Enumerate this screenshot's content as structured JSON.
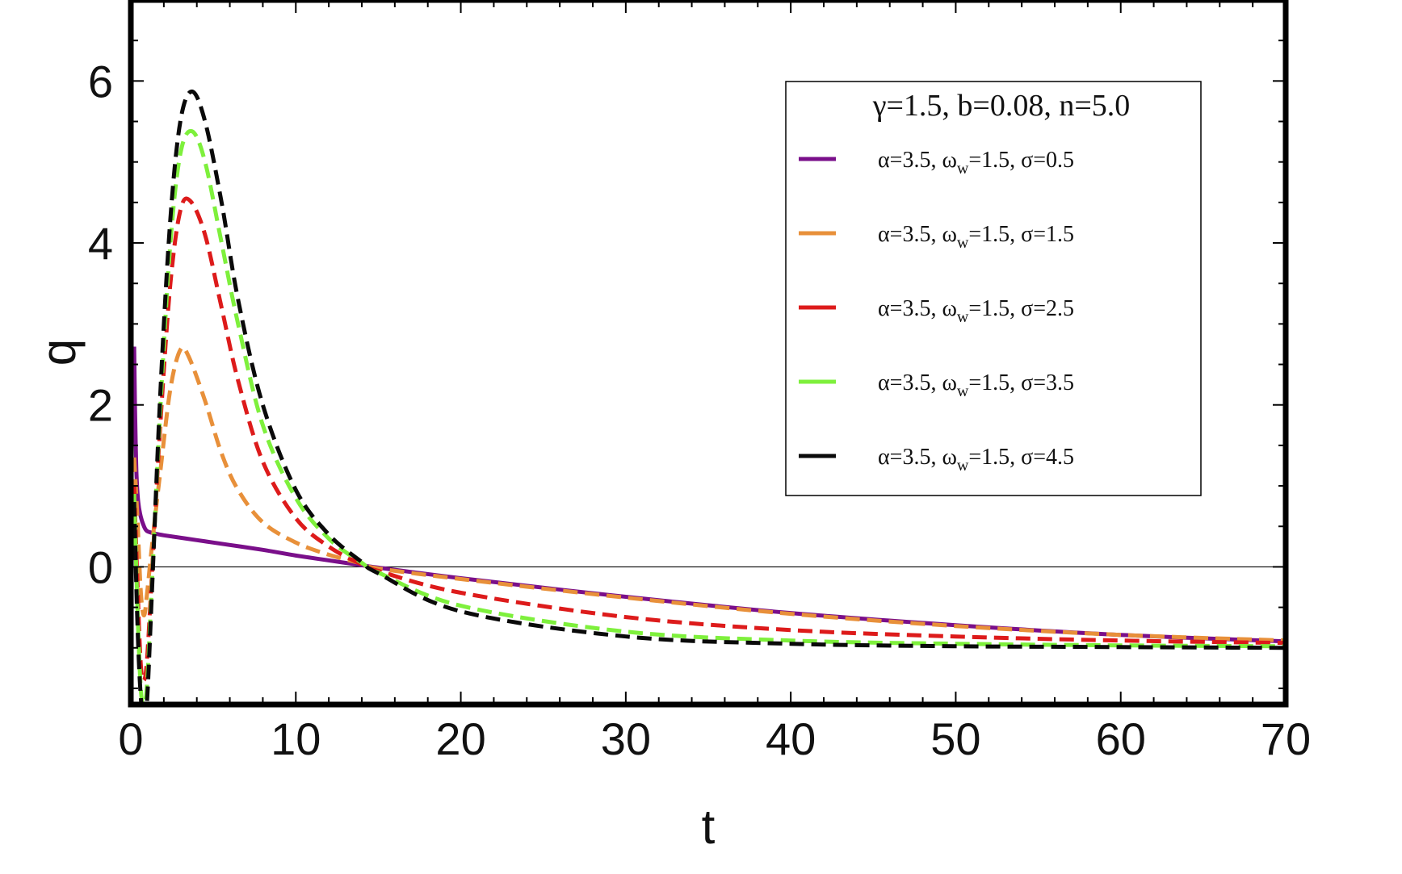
{
  "chart_data": {
    "type": "line",
    "xlabel": "t",
    "ylabel": "q",
    "xlim": [
      0,
      70
    ],
    "ylim": [
      -1.7,
      7.0
    ],
    "x_ticks": [
      0,
      10,
      20,
      30,
      40,
      50,
      60,
      70
    ],
    "y_ticks": [
      0,
      2,
      4,
      6
    ],
    "legend": {
      "title": "γ=1.5, b=0.08, n=5.0",
      "placement": "top-right"
    },
    "series": [
      {
        "name": "α=3.5, ωw=1.5, σ=0.5",
        "label_parts": {
          "a": "α=3.5, ω",
          "sub": "w",
          "b": "=1.5, σ=0.5"
        },
        "color": "#7a0f8a",
        "dash": "solid",
        "points": [
          [
            0.2,
            2.72
          ],
          [
            0.25,
            2.0
          ],
          [
            0.3,
            1.5
          ],
          [
            0.35,
            1.1
          ],
          [
            0.45,
            0.8
          ],
          [
            0.6,
            0.62
          ],
          [
            0.8,
            0.5
          ],
          [
            1.0,
            0.44
          ],
          [
            1.5,
            0.41
          ],
          [
            2,
            0.39
          ],
          [
            4,
            0.33
          ],
          [
            6,
            0.27
          ],
          [
            8,
            0.21
          ],
          [
            10,
            0.14
          ],
          [
            12,
            0.08
          ],
          [
            14,
            0.02
          ],
          [
            15,
            -0.01
          ],
          [
            20,
            -0.14
          ],
          [
            30,
            -0.37
          ],
          [
            40,
            -0.57
          ],
          [
            50,
            -0.72
          ],
          [
            60,
            -0.84
          ],
          [
            70,
            -0.92
          ]
        ]
      },
      {
        "name": "α=3.5, ωw=1.5, σ=1.5",
        "label_parts": {
          "a": "α=3.5, ω",
          "sub": "w",
          "b": "=1.5, σ=1.5"
        },
        "color": "#e8903a",
        "dash": "dashed",
        "points": [
          [
            0.2,
            1.35
          ],
          [
            0.4,
            0.6
          ],
          [
            0.6,
            -0.3
          ],
          [
            0.8,
            -0.6
          ],
          [
            1.0,
            -0.3
          ],
          [
            1.3,
            0.3
          ],
          [
            1.8,
            1.2
          ],
          [
            2.4,
            2.2
          ],
          [
            3.0,
            2.68
          ],
          [
            3.5,
            2.6
          ],
          [
            4.5,
            2.05
          ],
          [
            5.5,
            1.4
          ],
          [
            6.5,
            0.95
          ],
          [
            8,
            0.55
          ],
          [
            10,
            0.3
          ],
          [
            12,
            0.15
          ],
          [
            14,
            0.04
          ],
          [
            15,
            -0.02
          ],
          [
            20,
            -0.15
          ],
          [
            30,
            -0.38
          ],
          [
            40,
            -0.58
          ],
          [
            50,
            -0.73
          ],
          [
            60,
            -0.84
          ],
          [
            70,
            -0.91
          ]
        ]
      },
      {
        "name": "α=3.5, ωw=1.5, σ=2.5",
        "label_parts": {
          "a": "α=3.5, ω",
          "sub": "w",
          "b": "=1.5, σ=2.5"
        },
        "color": "#dd1b1b",
        "dash": "dashed",
        "points": [
          [
            0.2,
            1.0
          ],
          [
            0.4,
            -0.2
          ],
          [
            0.6,
            -1.2
          ],
          [
            0.8,
            -1.4
          ],
          [
            1.0,
            -1.1
          ],
          [
            1.3,
            0.0
          ],
          [
            1.8,
            1.8
          ],
          [
            2.4,
            3.5
          ],
          [
            3.0,
            4.4
          ],
          [
            3.6,
            4.52
          ],
          [
            4.5,
            4.1
          ],
          [
            5.5,
            3.2
          ],
          [
            6.5,
            2.3
          ],
          [
            8,
            1.3
          ],
          [
            10,
            0.6
          ],
          [
            12,
            0.25
          ],
          [
            14,
            0.03
          ],
          [
            15,
            -0.05
          ],
          [
            20,
            -0.32
          ],
          [
            30,
            -0.62
          ],
          [
            40,
            -0.78
          ],
          [
            50,
            -0.86
          ],
          [
            60,
            -0.91
          ],
          [
            70,
            -0.94
          ]
        ]
      },
      {
        "name": "α=3.5, ωw=1.5, σ=3.5",
        "label_parts": {
          "a": "α=3.5, ω",
          "sub": "w",
          "b": "=1.5, σ=3.5"
        },
        "color": "#7ef03c",
        "dash": "dashed",
        "points": [
          [
            0.2,
            0.9
          ],
          [
            0.4,
            -0.5
          ],
          [
            0.6,
            -1.5
          ],
          [
            0.8,
            -1.7
          ],
          [
            1.0,
            -1.4
          ],
          [
            1.3,
            -0.1
          ],
          [
            1.8,
            2.0
          ],
          [
            2.4,
            4.0
          ],
          [
            3.0,
            5.1
          ],
          [
            3.7,
            5.38
          ],
          [
            4.5,
            5.0
          ],
          [
            5.5,
            4.0
          ],
          [
            6.5,
            3.0
          ],
          [
            8,
            1.75
          ],
          [
            10,
            0.85
          ],
          [
            12,
            0.35
          ],
          [
            14,
            0.05
          ],
          [
            15,
            -0.07
          ],
          [
            20,
            -0.48
          ],
          [
            30,
            -0.8
          ],
          [
            40,
            -0.91
          ],
          [
            50,
            -0.95
          ],
          [
            60,
            -0.97
          ],
          [
            70,
            -0.98
          ]
        ]
      },
      {
        "name": "α=3.5, ωw=1.5, σ=4.5",
        "label_parts": {
          "a": "α=3.5, ω",
          "sub": "w",
          "b": "=1.5, σ=4.5"
        },
        "color": "#0a0a0a",
        "dash": "dashed",
        "points": [
          [
            0.2,
            0.8
          ],
          [
            0.4,
            -0.7
          ],
          [
            0.6,
            -1.6
          ],
          [
            0.8,
            -1.9
          ],
          [
            1.0,
            -1.6
          ],
          [
            1.3,
            -0.2
          ],
          [
            1.8,
            2.2
          ],
          [
            2.4,
            4.3
          ],
          [
            3.0,
            5.5
          ],
          [
            3.7,
            5.87
          ],
          [
            4.5,
            5.5
          ],
          [
            5.5,
            4.5
          ],
          [
            6.5,
            3.3
          ],
          [
            8,
            2.0
          ],
          [
            10,
            0.95
          ],
          [
            12,
            0.4
          ],
          [
            14,
            0.06
          ],
          [
            15,
            -0.08
          ],
          [
            20,
            -0.55
          ],
          [
            30,
            -0.86
          ],
          [
            40,
            -0.95
          ],
          [
            50,
            -0.98
          ],
          [
            60,
            -0.99
          ],
          [
            70,
            -1.0
          ]
        ]
      }
    ]
  }
}
